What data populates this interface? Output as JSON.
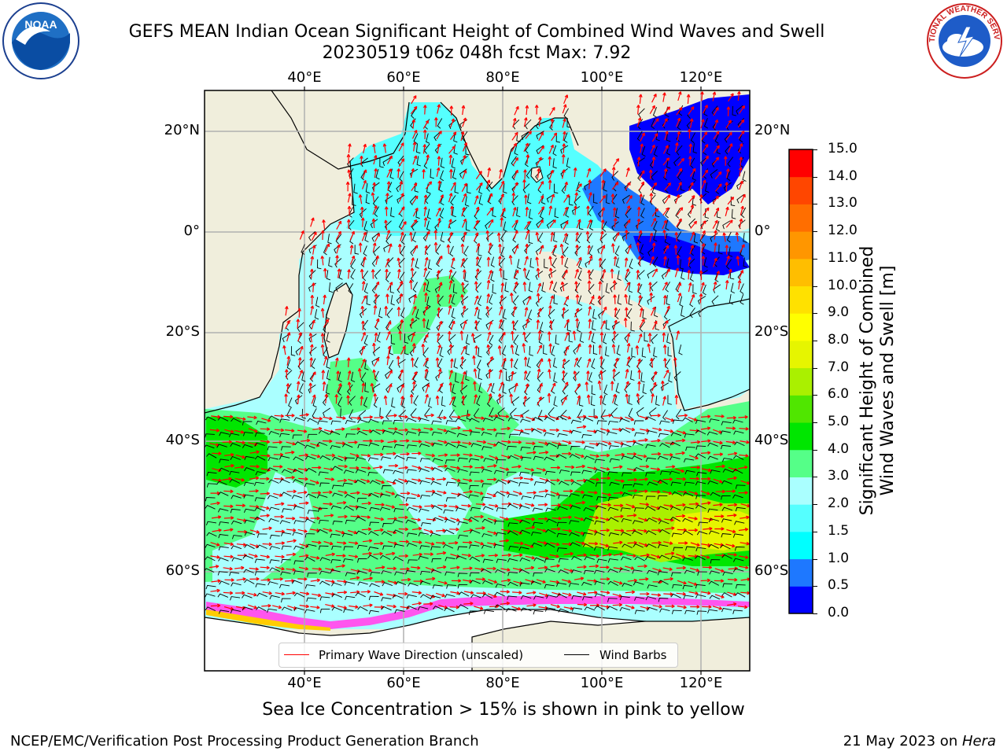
{
  "title": {
    "line1": "GEFS MEAN Indian Ocean Significant Height of Combined Wind Waves and Swell",
    "line2": "20230519 t06z 048h fcst   Max: 7.92"
  },
  "logos": {
    "left": {
      "name": "noaa-logo",
      "text": "NOAA"
    },
    "right": {
      "name": "nws-logo",
      "text": "NATIONAL WEATHER SERVICE"
    }
  },
  "map": {
    "lon_range": [
      20,
      130
    ],
    "lat_range": [
      -70,
      28
    ],
    "lon_ticks": [
      {
        "value": 40,
        "label": "40°E"
      },
      {
        "value": 60,
        "label": "60°E"
      },
      {
        "value": 80,
        "label": "80°E"
      },
      {
        "value": 100,
        "label": "100°E"
      },
      {
        "value": 120,
        "label": "120°E"
      }
    ],
    "lat_ticks": [
      {
        "value": 20,
        "label": "20°N"
      },
      {
        "value": 0,
        "label": "0°"
      },
      {
        "value": -20,
        "label": "20°S"
      },
      {
        "value": -40,
        "label": "40°S"
      },
      {
        "value": -60,
        "label": "60°S"
      }
    ],
    "gridlines": true,
    "land_color": "#f0eedc",
    "legend": {
      "placement": "bottom-center",
      "items": [
        {
          "label": "Primary Wave Direction (unscaled)",
          "color": "#ff0000"
        },
        {
          "label": "Wind Barbs",
          "color": "#000000"
        }
      ]
    }
  },
  "colorbar": {
    "label_line1": "Significant Height of Combined",
    "label_line2": "Wind Waves and Swell [m]",
    "ticks": [
      "0.0",
      "0.5",
      "1.0",
      "1.5",
      "2.0",
      "3.0",
      "4.0",
      "5.0",
      "6.0",
      "7.0",
      "8.0",
      "9.0",
      "10.0",
      "11.0",
      "12.0",
      "13.0",
      "14.0",
      "15.0"
    ],
    "colors": [
      "#0000ff",
      "#1e78ff",
      "#00ffff",
      "#55ffff",
      "#aaffff",
      "#55ff88",
      "#00e600",
      "#50e600",
      "#aaf000",
      "#e6f500",
      "#ffff00",
      "#ffe100",
      "#ffbe00",
      "#ff9600",
      "#ff6e00",
      "#ff4600",
      "#ff0000"
    ]
  },
  "note": "Sea Ice Concentration > 15% is shown in pink to yellow",
  "footer": {
    "left": "NCEP/EMC/Verification Post Processing Product Generation Branch",
    "right_date": "21 May 2023 on ",
    "right_host": "Hera"
  }
}
